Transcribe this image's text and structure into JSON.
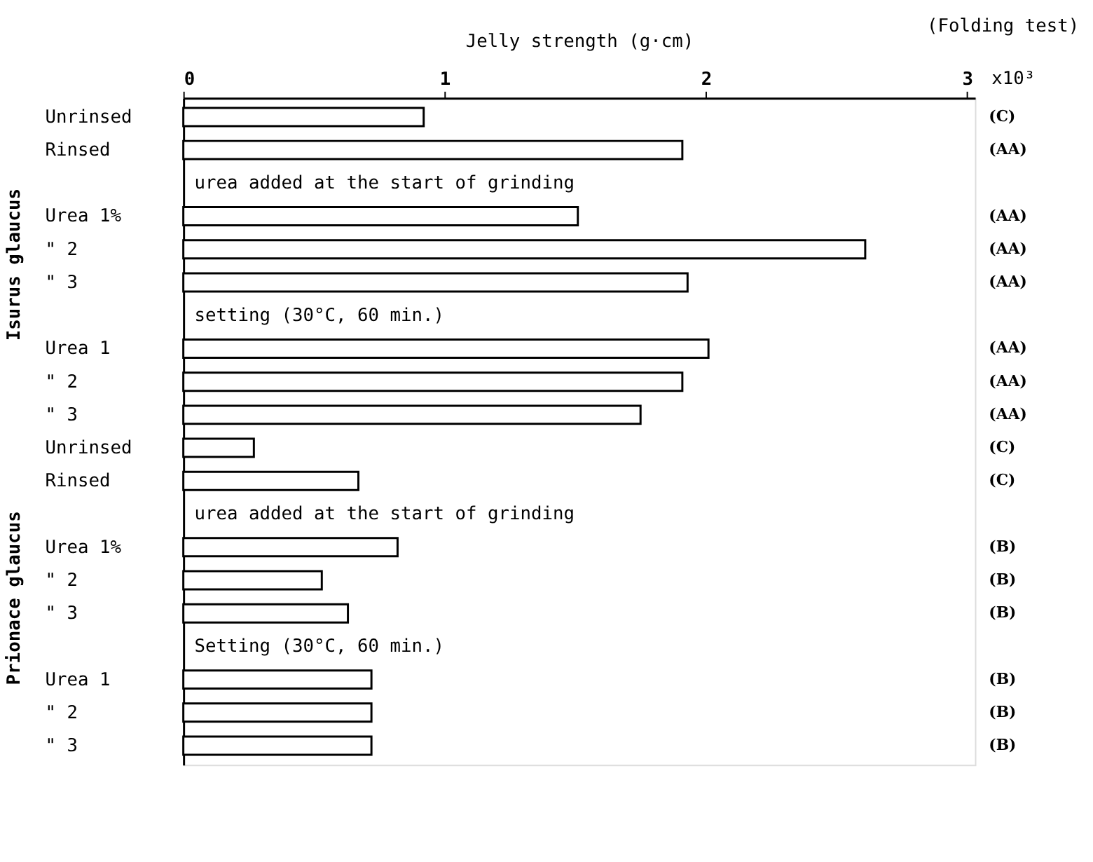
{
  "chart_data": {
    "type": "bar",
    "orientation": "horizontal",
    "xlabel": "Jelly strength (g·cm)",
    "y2label": "(Folding test)",
    "categories": [
      "Unrinsed",
      "Rinsed",
      null,
      "Urea 1%",
      "\" 2",
      "\" 3",
      null,
      "Urea 1",
      "\" 2",
      "\" 3",
      "Unrinsed",
      "Rinsed",
      null,
      "Urea 1%",
      "\" 2",
      "\" 3",
      null,
      "Urea 1",
      "\" 2",
      "\" 3"
    ],
    "values": [
      0.92,
      1.91,
      null,
      1.51,
      2.61,
      1.93,
      null,
      2.01,
      1.91,
      1.75,
      0.27,
      0.67,
      null,
      0.82,
      0.53,
      0.63,
      null,
      0.72,
      0.72,
      0.72
    ],
    "y2_categories": [
      "(C)",
      "(AA)",
      null,
      "(AA)",
      "(AA)",
      "(AA)",
      null,
      "(AA)",
      "(AA)",
      "(AA)",
      "(C)",
      "(C)",
      null,
      "(B)",
      "(B)",
      "(B)",
      null,
      "(B)",
      "(B)",
      "(B)"
    ],
    "color": "#ffffff",
    "xlim": [
      0,
      3.03
    ],
    "xticks": [
      0,
      1,
      2,
      3
    ],
    "grid": false,
    "annotations": [
      "urea added at the start of grinding",
      "setting (30°C, 60 min.)",
      "urea added at the start of grinding",
      "Setting (30°C, 60 min.)",
      "Isurus glaucus",
      "Prionace glaucus",
      "x10³"
    ]
  }
}
